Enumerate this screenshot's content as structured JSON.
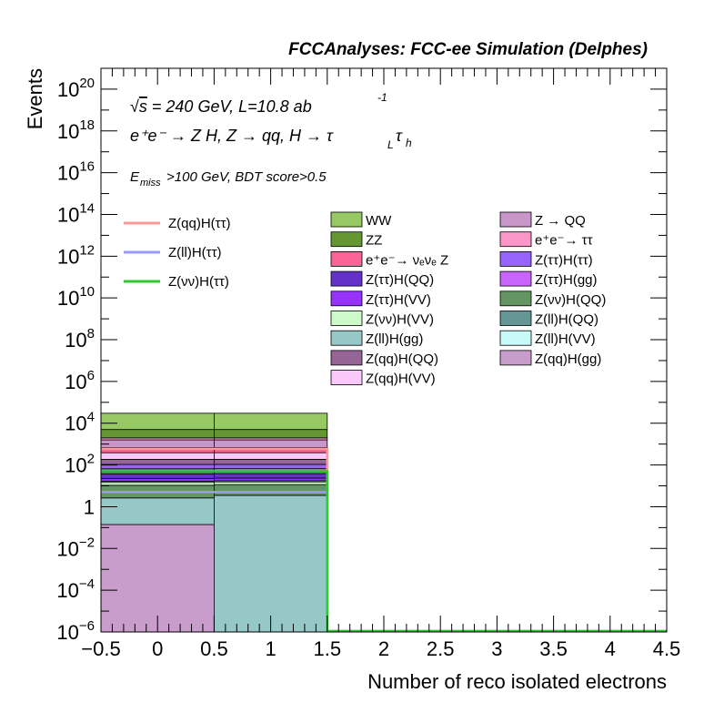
{
  "header": "FCCAnalyses: FCC-ee Simulation (Delphes)",
  "annotations": {
    "sqrt_s": "s",
    "lumi": " = 240 GeV, L=10.8 ab",
    "lumi_exp": "-1",
    "process_line": "e⁺e⁻ → Z H, Z → qq, H → τ",
    "process_sub_L": "L",
    "process_tau2": "τ",
    "process_sub_h": "h",
    "cut_E": "E",
    "cut_sub": "miss",
    "cut_rest": ">100 GeV, BDT score>0.5"
  },
  "chart_data": {
    "type": "histogram",
    "xlabel": "Number of reco isolated electrons",
    "ylabel": "Events",
    "xlim": [
      -0.5,
      4.5
    ],
    "ylim": [
      1e-06,
      1e+21
    ],
    "yscale": "log",
    "x_ticks": [
      "−0.5",
      "0",
      "0.5",
      "1",
      "1.5",
      "2",
      "2.5",
      "3",
      "3.5",
      "4",
      "4.5"
    ],
    "y_ticks": [
      {
        "base": "10",
        "exp": "20",
        "value": 1e+20
      },
      {
        "base": "10",
        "exp": "18",
        "value": 1e+18
      },
      {
        "base": "10",
        "exp": "16",
        "value": 1e+16
      },
      {
        "base": "10",
        "exp": "14",
        "value": 100000000000000.0
      },
      {
        "base": "10",
        "exp": "12",
        "value": 1000000000000.0
      },
      {
        "base": "10",
        "exp": "10",
        "value": 10000000000.0
      },
      {
        "base": "10",
        "exp": "8",
        "value": 100000000.0
      },
      {
        "base": "10",
        "exp": "6",
        "value": 1000000.0
      },
      {
        "base": "10",
        "exp": "4",
        "value": 10000.0
      },
      {
        "base": "10",
        "exp": "2",
        "value": 100.0
      },
      {
        "base": "1",
        "exp": "",
        "value": 1
      },
      {
        "base": "10",
        "exp": "−2",
        "value": 0.01
      },
      {
        "base": "10",
        "exp": "−4",
        "value": 0.0001
      },
      {
        "base": "10",
        "exp": "−6",
        "value": 1e-06
      }
    ],
    "bin_edges": [
      -0.5,
      0.5,
      1.5
    ],
    "stack_order_bottom_to_top": [
      {
        "name": "Z(qq)H(gg)",
        "color": "#c89ccb",
        "values": [
          0.14,
          1e-06
        ]
      },
      {
        "name": "Z(ll)H(gg)",
        "color": "#96c8c8",
        "values": [
          2.5,
          3.5
        ]
      },
      {
        "name": "Z(νν)H(QQ)",
        "color": "#649664",
        "values": [
          8,
          8
        ]
      },
      {
        "name": "Z(νν)H(VV)",
        "color": "#cdfac8",
        "values": [
          4,
          4
        ]
      },
      {
        "name": "Z(ll)H(VV)",
        "color": "#c8fafa",
        "values": [
          2,
          2
        ]
      },
      {
        "name": "Z(ττ)H(VV)",
        "color": "#9632fa",
        "values": [
          6,
          6
        ]
      },
      {
        "name": "Z(ττ)H(QQ)",
        "color": "#6432c8",
        "values": [
          15,
          15
        ]
      },
      {
        "name": "Z(ll)H(QQ)",
        "color": "#649696",
        "values": [
          8,
          8
        ]
      },
      {
        "name": "Z(ττ)H(gg)",
        "color": "#c864fa",
        "values": [
          20,
          20
        ]
      },
      {
        "name": "Z(ττ)H(ττ)",
        "color": "#9664fa",
        "values": [
          40,
          40
        ]
      },
      {
        "name": "Z(qq)H(QQ)",
        "color": "#966496",
        "values": [
          80,
          80
        ]
      },
      {
        "name": "Z(qq)H(VV)",
        "color": "#fac8fa",
        "values": [
          200,
          200
        ]
      },
      {
        "name": "e⁺e⁻→ νₑνₑ Z",
        "color": "#fa6496",
        "values": [
          300,
          300
        ]
      },
      {
        "name": "Z → QQ",
        "color": "#c896c8",
        "values": [
          900,
          900
        ]
      },
      {
        "name": "e⁺e⁻→ ττ",
        "color": "#fa96c8",
        "values": [
          400,
          400
        ]
      },
      {
        "name": "ZZ",
        "color": "#649632",
        "values": [
          3000,
          3000
        ]
      },
      {
        "name": "WW",
        "color": "#96c864",
        "values": [
          25000,
          25000
        ]
      }
    ],
    "signal_lines": [
      {
        "name": "Z(qq)H(ττ)",
        "color": "#f89a9a",
        "values": [
          600,
          600
        ]
      },
      {
        "name": "Z(ll)H(ττ)",
        "color": "#9a9afa",
        "values": [
          5,
          5
        ]
      },
      {
        "name": "Z(νν)H(ττ)",
        "color": "#32c832",
        "values": [
          50,
          50
        ]
      }
    ],
    "legend_signals": [
      {
        "label": "Z(qq)H(ττ)",
        "color": "#f89a9a"
      },
      {
        "label": "Z(ll)H(ττ)",
        "color": "#9a9afa"
      },
      {
        "label": "Z(νν)H(ττ)",
        "color": "#32c832"
      }
    ],
    "legend_bkg_col1": [
      {
        "label": "WW",
        "color": "#96c864"
      },
      {
        "label": "ZZ",
        "color": "#649632"
      },
      {
        "label": "e⁺e⁻→ νₑνₑ Z",
        "color": "#fa6496"
      },
      {
        "label": "Z(ττ)H(QQ)",
        "color": "#6432c8"
      },
      {
        "label": "Z(ττ)H(VV)",
        "color": "#9632fa"
      },
      {
        "label": "Z(νν)H(VV)",
        "color": "#cdfac8"
      },
      {
        "label": "Z(ll)H(gg)",
        "color": "#96c8c8"
      },
      {
        "label": "Z(qq)H(QQ)",
        "color": "#966496"
      },
      {
        "label": "Z(qq)H(VV)",
        "color": "#fac8fa"
      }
    ],
    "legend_bkg_col2": [
      {
        "label": "Z → QQ",
        "color": "#c896c8"
      },
      {
        "label": "e⁺e⁻→ ττ",
        "color": "#fa96c8"
      },
      {
        "label": "Z(ττ)H(ττ)",
        "color": "#9664fa"
      },
      {
        "label": "Z(ττ)H(gg)",
        "color": "#c864fa"
      },
      {
        "label": "Z(νν)H(QQ)",
        "color": "#649664"
      },
      {
        "label": "Z(ll)H(QQ)",
        "color": "#649696"
      },
      {
        "label": "Z(ll)H(VV)",
        "color": "#c8fafa"
      },
      {
        "label": "Z(qq)H(gg)",
        "color": "#c89ccb"
      }
    ]
  }
}
